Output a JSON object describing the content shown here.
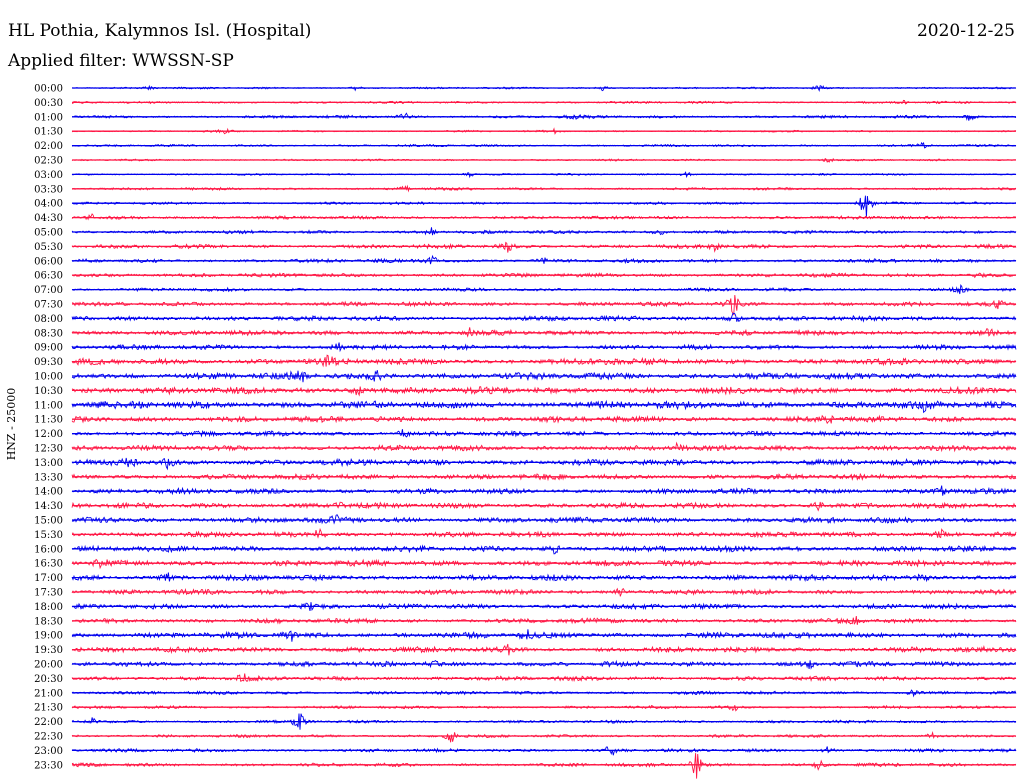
{
  "header": {
    "station": "HL Pothia, Kalymnos Isl. (Hospital)",
    "date": "2020-12-25",
    "filter_label": "Applied filter: WWSSN-SP"
  },
  "chart_data": {
    "type": "line",
    "title": "HL Pothia, Kalymnos Isl. (Hospital)",
    "ylabel": "HNZ - 25000",
    "xlabel": "",
    "trace_colors": [
      "#0000ee",
      "#ff1745"
    ],
    "grid": false,
    "legend": "none",
    "rows": [
      {
        "time": "00:00",
        "activity": 0.1,
        "events": [
          {
            "at": 0.08,
            "amp": 0.3
          },
          {
            "at": 0.3,
            "amp": 0.25
          },
          {
            "at": 0.56,
            "amp": 0.35
          },
          {
            "at": 0.79,
            "amp": 0.35
          }
        ]
      },
      {
        "time": "00:30",
        "activity": 0.12,
        "events": [
          {
            "at": 0.88,
            "amp": 0.25
          }
        ]
      },
      {
        "time": "01:00",
        "activity": 0.16,
        "events": [
          {
            "at": 0.35,
            "amp": 0.55
          },
          {
            "at": 0.53,
            "amp": 0.45
          },
          {
            "at": 0.95,
            "amp": 0.45
          }
        ]
      },
      {
        "time": "01:30",
        "activity": 0.1,
        "events": [
          {
            "at": 0.16,
            "amp": 0.3
          },
          {
            "at": 0.51,
            "amp": 0.25
          }
        ]
      },
      {
        "time": "02:00",
        "activity": 0.12,
        "events": [
          {
            "at": 0.9,
            "amp": 0.35
          }
        ]
      },
      {
        "time": "02:30",
        "activity": 0.1,
        "events": [
          {
            "at": 0.8,
            "amp": 0.3
          }
        ]
      },
      {
        "time": "03:00",
        "activity": 0.1,
        "events": [
          {
            "at": 0.42,
            "amp": 0.3
          },
          {
            "at": 0.65,
            "amp": 0.3
          }
        ]
      },
      {
        "time": "03:30",
        "activity": 0.14,
        "events": [
          {
            "at": 0.35,
            "amp": 0.6
          }
        ]
      },
      {
        "time": "04:00",
        "activity": 0.14,
        "events": [
          {
            "at": 0.84,
            "amp": 2.4
          }
        ]
      },
      {
        "time": "04:30",
        "activity": 0.18,
        "events": [
          {
            "at": 0.02,
            "amp": 0.4
          }
        ]
      },
      {
        "time": "05:00",
        "activity": 0.18,
        "events": [
          {
            "at": 0.38,
            "amp": 0.6
          },
          {
            "at": 0.62,
            "amp": 0.5
          }
        ]
      },
      {
        "time": "05:30",
        "activity": 0.22,
        "events": [
          {
            "at": 0.46,
            "amp": 0.9
          },
          {
            "at": 0.68,
            "amp": 0.55
          }
        ]
      },
      {
        "time": "06:00",
        "activity": 0.2,
        "events": [
          {
            "at": 0.38,
            "amp": 0.65
          },
          {
            "at": 0.5,
            "amp": 0.5
          }
        ]
      },
      {
        "time": "06:30",
        "activity": 0.22,
        "events": [
          {
            "at": 0.96,
            "amp": 0.45
          }
        ]
      },
      {
        "time": "07:00",
        "activity": 0.18,
        "events": [
          {
            "at": 0.94,
            "amp": 0.45
          }
        ]
      },
      {
        "time": "07:30",
        "activity": 0.24,
        "events": [
          {
            "at": 0.7,
            "amp": 1.6
          },
          {
            "at": 0.98,
            "amp": 0.5
          }
        ]
      },
      {
        "time": "08:00",
        "activity": 0.28,
        "events": [
          {
            "at": 0.7,
            "amp": 0.7
          }
        ]
      },
      {
        "time": "08:30",
        "activity": 0.28,
        "events": [
          {
            "at": 0.42,
            "amp": 0.55
          },
          {
            "at": 0.97,
            "amp": 0.55
          }
        ]
      },
      {
        "time": "09:00",
        "activity": 0.26,
        "events": [
          {
            "at": 0.28,
            "amp": 0.65
          }
        ]
      },
      {
        "time": "09:30",
        "activity": 0.34,
        "events": [
          {
            "at": 0.27,
            "amp": 0.7
          },
          {
            "at": 0.57,
            "amp": 0.7
          }
        ]
      },
      {
        "time": "10:00",
        "activity": 0.38,
        "events": [
          {
            "at": 0.24,
            "amp": 0.8
          },
          {
            "at": 0.32,
            "amp": 0.7
          }
        ]
      },
      {
        "time": "10:30",
        "activity": 0.38,
        "events": [
          {
            "at": 0.3,
            "amp": 0.7
          }
        ]
      },
      {
        "time": "11:00",
        "activity": 0.42,
        "events": [
          {
            "at": 0.9,
            "amp": 0.6
          }
        ]
      },
      {
        "time": "11:30",
        "activity": 0.32,
        "events": [
          {
            "at": 0.8,
            "amp": 0.6
          }
        ]
      },
      {
        "time": "12:00",
        "activity": 0.28,
        "events": [
          {
            "at": 0.35,
            "amp": 0.5
          }
        ]
      },
      {
        "time": "12:30",
        "activity": 0.3,
        "events": [
          {
            "at": 0.64,
            "amp": 0.55
          }
        ]
      },
      {
        "time": "13:00",
        "activity": 0.34,
        "events": [
          {
            "at": 0.06,
            "amp": 0.6
          },
          {
            "at": 0.1,
            "amp": 0.7
          }
        ]
      },
      {
        "time": "13:30",
        "activity": 0.3,
        "events": [
          {
            "at": 0.29,
            "amp": 0.55
          }
        ]
      },
      {
        "time": "14:00",
        "activity": 0.3,
        "events": [
          {
            "at": 0.92,
            "amp": 0.7
          }
        ]
      },
      {
        "time": "14:30",
        "activity": 0.3,
        "events": [
          {
            "at": 0.28,
            "amp": 0.55
          },
          {
            "at": 0.79,
            "amp": 0.55
          }
        ]
      },
      {
        "time": "15:00",
        "activity": 0.32,
        "events": [
          {
            "at": 0.28,
            "amp": 0.55
          }
        ]
      },
      {
        "time": "15:30",
        "activity": 0.3,
        "events": [
          {
            "at": 0.26,
            "amp": 0.7
          },
          {
            "at": 0.92,
            "amp": 0.55
          }
        ]
      },
      {
        "time": "16:00",
        "activity": 0.32,
        "events": [
          {
            "at": 0.51,
            "amp": 0.65
          }
        ]
      },
      {
        "time": "16:30",
        "activity": 0.32,
        "events": [
          {
            "at": 0.03,
            "amp": 0.7
          }
        ]
      },
      {
        "time": "17:00",
        "activity": 0.32,
        "events": [
          {
            "at": 0.1,
            "amp": 0.6
          },
          {
            "at": 0.9,
            "amp": 0.75
          }
        ]
      },
      {
        "time": "17:30",
        "activity": 0.28,
        "events": [
          {
            "at": 0.58,
            "amp": 0.55
          }
        ]
      },
      {
        "time": "18:00",
        "activity": 0.28,
        "events": [
          {
            "at": 0.25,
            "amp": 0.5
          }
        ]
      },
      {
        "time": "18:30",
        "activity": 0.26,
        "events": [
          {
            "at": 0.83,
            "amp": 0.5
          }
        ]
      },
      {
        "time": "19:00",
        "activity": 0.32,
        "events": [
          {
            "at": 0.23,
            "amp": 0.75
          },
          {
            "at": 0.48,
            "amp": 0.6
          }
        ]
      },
      {
        "time": "19:30",
        "activity": 0.3,
        "events": [
          {
            "at": 0.46,
            "amp": 0.6
          }
        ]
      },
      {
        "time": "20:00",
        "activity": 0.28,
        "events": [
          {
            "at": 0.38,
            "amp": 0.6
          },
          {
            "at": 0.78,
            "amp": 0.55
          }
        ]
      },
      {
        "time": "20:30",
        "activity": 0.24,
        "events": [
          {
            "at": 0.18,
            "amp": 0.5
          }
        ]
      },
      {
        "time": "21:00",
        "activity": 0.18,
        "events": [
          {
            "at": 0.89,
            "amp": 0.5
          }
        ]
      },
      {
        "time": "21:30",
        "activity": 0.16,
        "events": [
          {
            "at": 0.7,
            "amp": 0.45
          }
        ]
      },
      {
        "time": "22:00",
        "activity": 0.16,
        "events": [
          {
            "at": 0.24,
            "amp": 1.1
          },
          {
            "at": 0.02,
            "amp": 0.55
          }
        ]
      },
      {
        "time": "22:30",
        "activity": 0.16,
        "events": [
          {
            "at": 0.4,
            "amp": 0.9
          },
          {
            "at": 0.91,
            "amp": 0.45
          }
        ]
      },
      {
        "time": "23:00",
        "activity": 0.18,
        "events": [
          {
            "at": 0.57,
            "amp": 0.8
          },
          {
            "at": 0.8,
            "amp": 0.45
          }
        ]
      },
      {
        "time": "23:30",
        "activity": 0.2,
        "events": [
          {
            "at": 0.66,
            "amp": 2.2
          },
          {
            "at": 0.79,
            "amp": 0.55
          }
        ]
      }
    ]
  }
}
